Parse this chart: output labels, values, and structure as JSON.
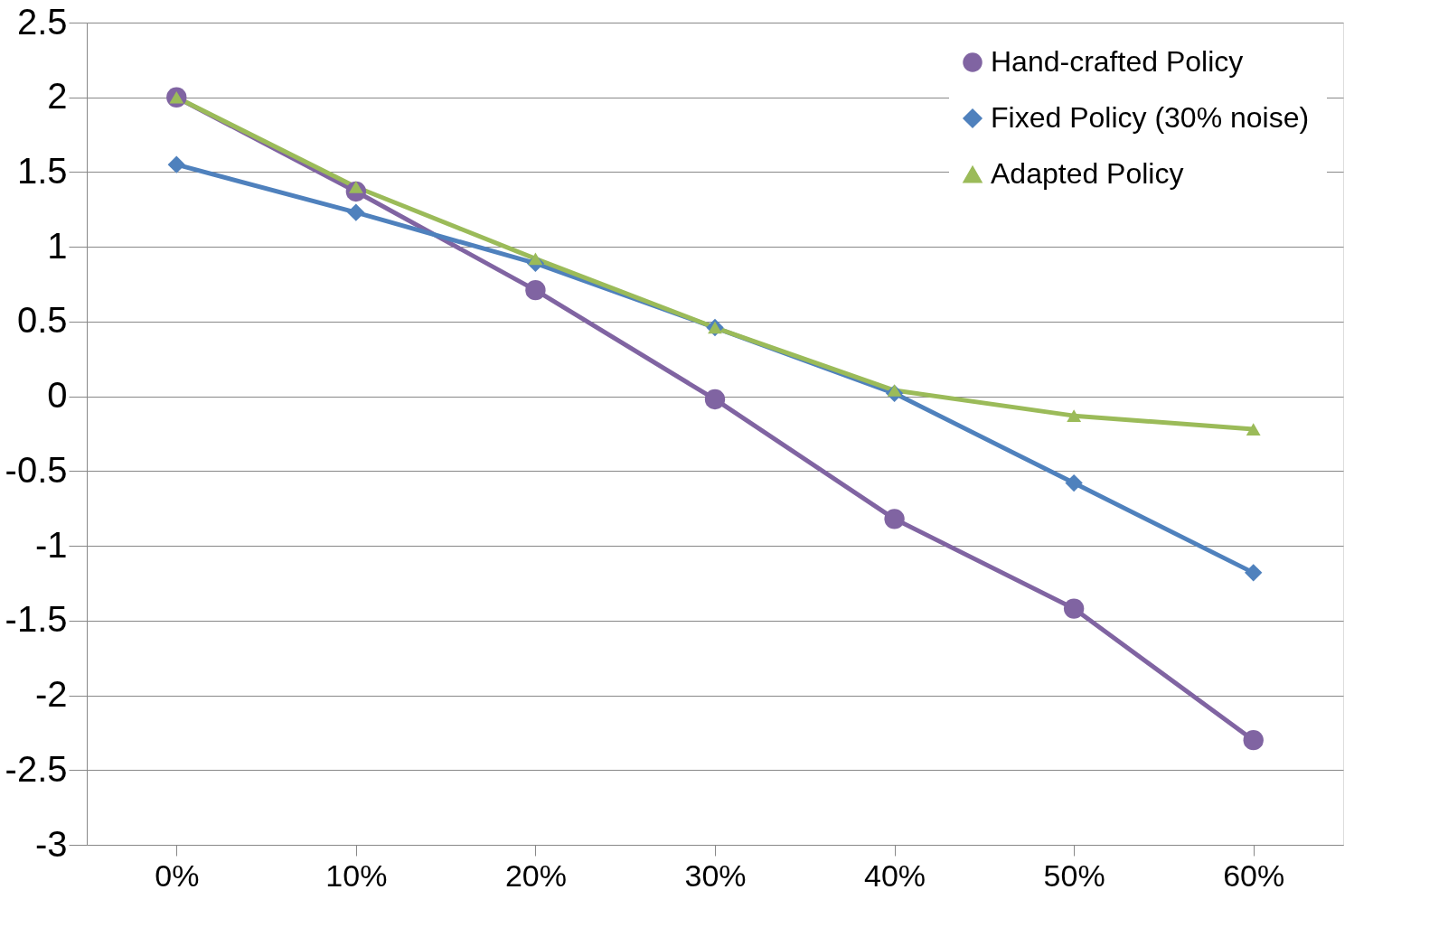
{
  "chart_data": {
    "type": "line",
    "categories": [
      "0%",
      "10%",
      "20%",
      "30%",
      "40%",
      "50%",
      "60%"
    ],
    "series": [
      {
        "name": "Hand-crafted Policy",
        "color": "#8064a2",
        "marker": "circle",
        "values": [
          2.0,
          1.37,
          0.71,
          -0.02,
          -0.82,
          -1.42,
          -2.3
        ]
      },
      {
        "name": "Fixed Policy  (30% noise)",
        "color": "#4f81bd",
        "marker": "diamond",
        "values": [
          1.55,
          1.23,
          0.89,
          0.46,
          0.02,
          -0.58,
          -1.18
        ]
      },
      {
        "name": "Adapted Policy",
        "color": "#9bbb59",
        "marker": "triangle",
        "values": [
          2.0,
          1.4,
          0.92,
          0.46,
          0.04,
          -0.13,
          -0.22
        ]
      }
    ],
    "ylim": [
      -3,
      2.5
    ],
    "yticks": [
      -3,
      -2.5,
      -2,
      -1.5,
      -1,
      -0.5,
      0,
      0.5,
      1,
      1.5,
      2,
      2.5
    ],
    "grid": "y",
    "legend": "top right",
    "line_style": "solid"
  }
}
